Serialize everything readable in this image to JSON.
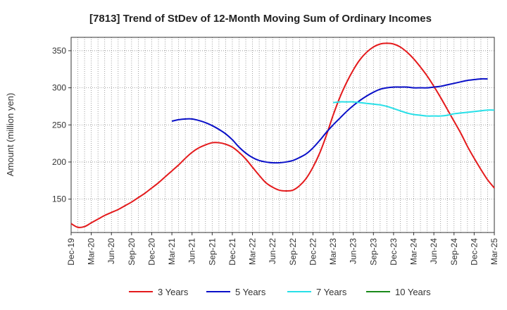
{
  "chart_data": {
    "type": "line",
    "title": "[7813]  Trend of StDev of 12-Month Moving Sum of Ordinary Incomes",
    "xlabel": "",
    "ylabel": "Amount (million yen)",
    "ylim": [
      105,
      368
    ],
    "yticks": [
      150,
      200,
      250,
      300,
      350
    ],
    "x_tick_labels": [
      "Dec-19",
      "Mar-20",
      "Jun-20",
      "Sep-20",
      "Dec-20",
      "Mar-21",
      "Jun-21",
      "Sep-21",
      "Dec-21",
      "Mar-22",
      "Jun-22",
      "Sep-22",
      "Dec-22",
      "Mar-23",
      "Jun-23",
      "Sep-23",
      "Dec-23",
      "Mar-24",
      "Jun-24",
      "Sep-24",
      "Dec-24",
      "Mar-25"
    ],
    "grid": true,
    "legend_position": "bottom",
    "series": [
      {
        "name": "3 Years",
        "color": "#e41a1c",
        "start_index": 0,
        "values": [
          117,
          112,
          113,
          118,
          123,
          128,
          132,
          136,
          141,
          146,
          152,
          158,
          165,
          172,
          180,
          188,
          196,
          205,
          213,
          219,
          223,
          226,
          226,
          224,
          220,
          213,
          204,
          193,
          182,
          172,
          166,
          162,
          161,
          162,
          168,
          178,
          193,
          212,
          236,
          263,
          287,
          307,
          324,
          338,
          348,
          355,
          359,
          360,
          359,
          355,
          348,
          339,
          328,
          316,
          302,
          287,
          271,
          255,
          239,
          221,
          205,
          190,
          176,
          165
        ]
      },
      {
        "name": "5 Years",
        "color": "#0a10c8",
        "start_index": 15,
        "values": [
          255,
          257,
          258,
          258,
          256,
          253,
          249,
          244,
          238,
          230,
          220,
          212,
          206,
          202,
          200,
          199,
          199,
          200,
          202,
          206,
          211,
          219,
          229,
          240,
          250,
          259,
          268,
          276,
          283,
          289,
          294,
          298,
          300,
          301,
          301,
          301,
          300,
          300,
          300,
          301,
          302,
          304,
          306,
          308,
          310,
          311,
          312,
          312
        ]
      },
      {
        "name": "7 Years",
        "color": "#28e0e8",
        "start_index": 39,
        "values": [
          280,
          281,
          281,
          281,
          280,
          279,
          278,
          277,
          275,
          272,
          269,
          266,
          264,
          263,
          262,
          262,
          262,
          263,
          265,
          266,
          267,
          268,
          269,
          270,
          270
        ]
      },
      {
        "name": "10 Years",
        "color": "#1a8a1a",
        "start_index": 0,
        "values": []
      }
    ]
  }
}
